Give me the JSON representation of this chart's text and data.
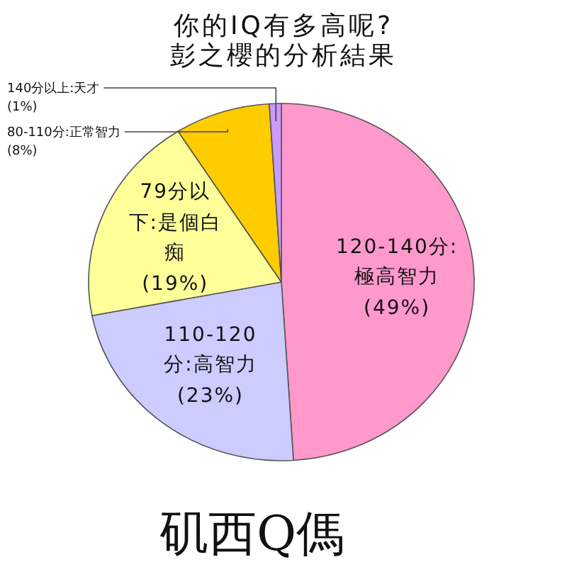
{
  "chart_data": {
    "type": "pie",
    "title": "你的IQ有多高呢?",
    "subtitle": "彭之櫻的分析結果",
    "categories": [
      "120-140分:極高智力",
      "110-120分:高智力",
      "79分以下:是個白痴",
      "80-110分:正常智力",
      "140分以上:天才"
    ],
    "values": [
      49,
      23,
      19,
      8,
      1
    ],
    "colors": [
      "#ff99cc",
      "#ccccff",
      "#ffff99",
      "#ffcc00",
      "#cc99ff"
    ],
    "value_labels": [
      "(49%)",
      "(23%)",
      "(19%)",
      "(8%)",
      "(1%)"
    ],
    "annotations": [
      "矶西Q傌"
    ]
  }
}
